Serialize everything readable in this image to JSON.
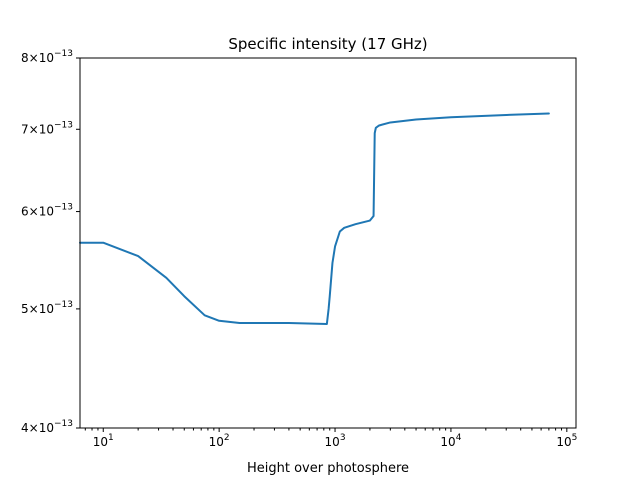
{
  "chart_data": {
    "type": "line",
    "title": "Specific intensity (17 GHz)",
    "xlabel": "Height over photosphere",
    "ylabel": "",
    "xscale": "log",
    "yscale": "log",
    "xlim": [
      6.3,
      120000
    ],
    "ylim": [
      4e-13,
      8e-13
    ],
    "x_ticks": [
      {
        "value": 10,
        "base": "10",
        "exp": "1"
      },
      {
        "value": 100,
        "base": "10",
        "exp": "2"
      },
      {
        "value": 1000,
        "base": "10",
        "exp": "3"
      },
      {
        "value": 10000,
        "base": "10",
        "exp": "4"
      },
      {
        "value": 100000,
        "base": "10",
        "exp": "5"
      }
    ],
    "y_ticks": [
      {
        "value": 4e-13,
        "mantissa": "4",
        "base": "10",
        "exp": "−13"
      },
      {
        "value": 5e-13,
        "mantissa": "5",
        "base": "10",
        "exp": "−13"
      },
      {
        "value": 6e-13,
        "mantissa": "6",
        "base": "10",
        "exp": "−13"
      },
      {
        "value": 7e-13,
        "mantissa": "7",
        "base": "10",
        "exp": "−13"
      },
      {
        "value": 8e-13,
        "mantissa": "8",
        "base": "10",
        "exp": "−13"
      }
    ],
    "grid": false,
    "legend": "none",
    "series": [
      {
        "color": "#1f77b4",
        "x": [
          6.3,
          10,
          20,
          35,
          50,
          75,
          100,
          150,
          200,
          400,
          850,
          880,
          900,
          950,
          1000,
          1100,
          1200,
          1500,
          2000,
          2150,
          2200,
          2250,
          2400,
          3000,
          5000,
          10000,
          30000,
          70000
        ],
        "y": [
          5.66e-13,
          5.66e-13,
          5.52e-13,
          5.3e-13,
          5.12e-13,
          4.94e-13,
          4.89e-13,
          4.87e-13,
          4.87e-13,
          4.87e-13,
          4.86e-13,
          5e-13,
          5.12e-13,
          5.45e-13,
          5.62e-13,
          5.78e-13,
          5.82e-13,
          5.86e-13,
          5.9e-13,
          5.95e-13,
          6.95e-13,
          7.02e-13,
          7.05e-13,
          7.09e-13,
          7.13e-13,
          7.16e-13,
          7.19e-13,
          7.21e-13
        ]
      }
    ]
  }
}
